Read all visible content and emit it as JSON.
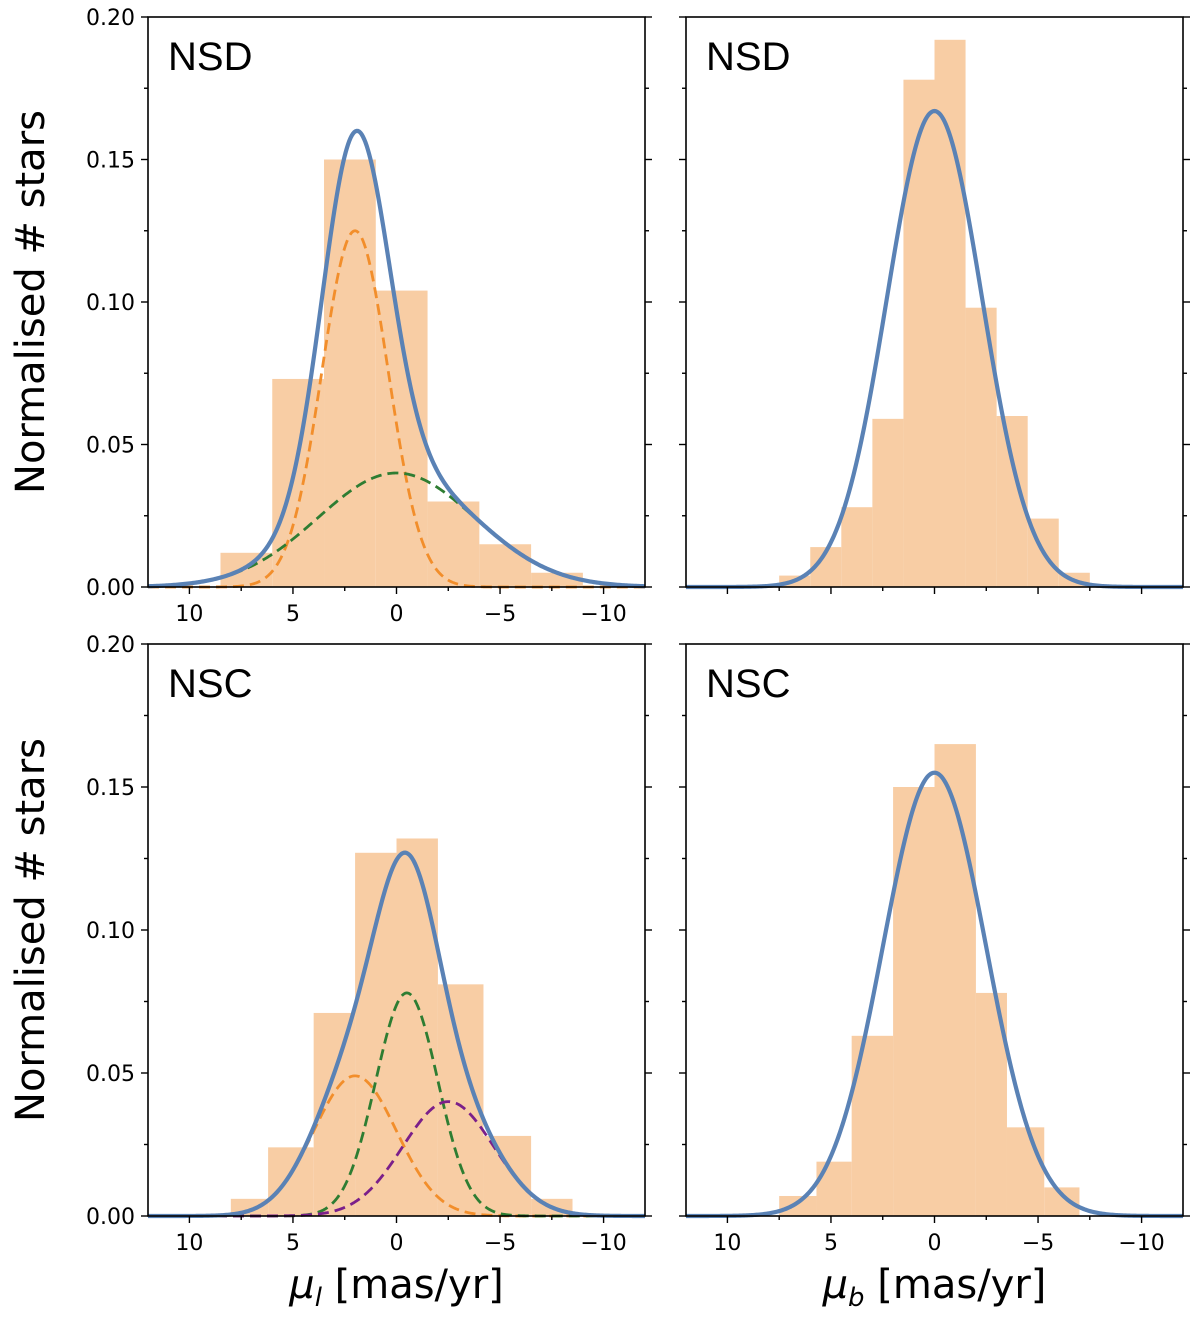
{
  "colors": {
    "histogram": "#f8cda4",
    "total_fit": "#5a82b5",
    "component_orange": "#f28e2b",
    "component_green": "#2e7d32",
    "component_purple": "#7b1f8a"
  },
  "chart_data": [
    {
      "type": "bar",
      "panel": "top-left",
      "label": "NSD",
      "xlim": [
        12,
        -12
      ],
      "ylim": [
        0,
        0.2
      ],
      "xticks": [
        "10",
        "5",
        "0",
        "−5",
        "−10"
      ],
      "yticks": [
        "0.00",
        "0.05",
        "0.10",
        "0.15",
        "0.20"
      ],
      "ylabel": "Normalised # stars",
      "xlabel": "",
      "bin_edges": [
        8.5,
        6.0,
        3.5,
        1.0,
        -1.5,
        -4.0,
        -6.5,
        -9.0
      ],
      "values": [
        0.012,
        0.073,
        0.15,
        0.104,
        0.03,
        0.015,
        0.005
      ],
      "series": [
        {
          "name": "total",
          "style": "solid",
          "color": "total_fit",
          "components": [
            [
              0.125,
              2.0,
              1.6
            ],
            [
              0.04,
              0.0,
              3.8
            ]
          ]
        },
        {
          "name": "component 1",
          "style": "dashed",
          "color": "component_orange",
          "components": [
            [
              0.125,
              2.0,
              1.6
            ]
          ]
        },
        {
          "name": "component 2",
          "style": "dashed",
          "color": "component_green",
          "components": [
            [
              0.04,
              0.0,
              3.8
            ]
          ]
        }
      ]
    },
    {
      "type": "bar",
      "panel": "top-right",
      "label": "NSD",
      "xlim": [
        12,
        -12
      ],
      "ylim": [
        0,
        0.2
      ],
      "xticks": [],
      "yticks": [],
      "ylabel": "",
      "xlabel": "",
      "bin_edges": [
        7.5,
        6.0,
        4.5,
        3.0,
        1.5,
        0.0,
        -1.5,
        -3.0,
        -4.5,
        -6.0,
        -7.5
      ],
      "values": [
        0.004,
        0.014,
        0.028,
        0.059,
        0.178,
        0.192,
        0.098,
        0.06,
        0.024,
        0.005
      ],
      "series": [
        {
          "name": "total",
          "style": "solid",
          "color": "total_fit",
          "components": [
            [
              0.167,
              0.0,
              2.3
            ]
          ]
        }
      ]
    },
    {
      "type": "bar",
      "panel": "bottom-left",
      "label": "NSC",
      "xlim": [
        12,
        -12
      ],
      "ylim": [
        0,
        0.2
      ],
      "xticks": [
        "10",
        "5",
        "0",
        "−5",
        "−10"
      ],
      "yticks": [
        "0.00",
        "0.05",
        "0.10",
        "0.15",
        "0.20"
      ],
      "ylabel": "Normalised # stars",
      "xlabel": "μ_l [mas/yr]",
      "bin_edges": [
        8.0,
        6.2,
        4.0,
        2.0,
        0.0,
        -2.0,
        -4.2,
        -6.5,
        -8.5
      ],
      "values": [
        0.006,
        0.024,
        0.071,
        0.127,
        0.132,
        0.081,
        0.028,
        0.006
      ],
      "series": [
        {
          "name": "total",
          "style": "solid",
          "color": "total_fit",
          "components": [
            [
              0.049,
              2.0,
              2.0
            ],
            [
              0.078,
              -0.5,
              1.5
            ],
            [
              0.04,
              -2.5,
              2.2
            ]
          ]
        },
        {
          "name": "component 1",
          "style": "dashed",
          "color": "component_orange",
          "components": [
            [
              0.049,
              2.0,
              2.0
            ]
          ]
        },
        {
          "name": "component 2",
          "style": "dashed",
          "color": "component_green",
          "components": [
            [
              0.078,
              -0.5,
              1.5
            ]
          ]
        },
        {
          "name": "component 3",
          "style": "dashed",
          "color": "component_purple",
          "components": [
            [
              0.04,
              -2.5,
              2.2
            ]
          ]
        }
      ]
    },
    {
      "type": "bar",
      "panel": "bottom-right",
      "label": "NSC",
      "xlim": [
        12,
        -12
      ],
      "ylim": [
        0,
        0.2
      ],
      "xticks": [
        "10",
        "5",
        "0",
        "−5",
        "−10"
      ],
      "yticks": [],
      "ylabel": "",
      "xlabel": "μ_b [mas/yr]",
      "bin_edges": [
        7.5,
        5.7,
        4.0,
        2.0,
        0.0,
        -2.0,
        -3.5,
        -5.3,
        -7.0
      ],
      "values": [
        0.007,
        0.019,
        0.063,
        0.15,
        0.165,
        0.078,
        0.031,
        0.01
      ],
      "series": [
        {
          "name": "total",
          "style": "solid",
          "color": "total_fit",
          "components": [
            [
              0.155,
              0.0,
              2.5
            ]
          ]
        }
      ]
    }
  ]
}
